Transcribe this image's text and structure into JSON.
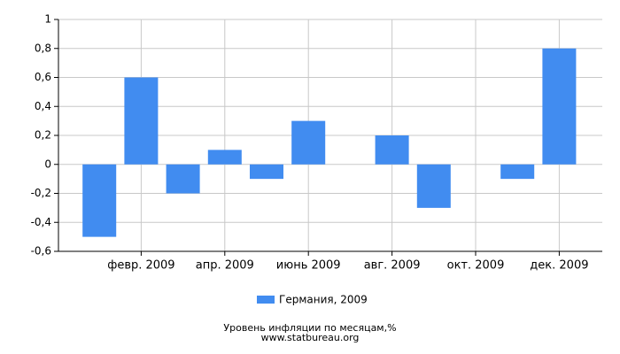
{
  "chart_data": {
    "type": "bar",
    "categories": [
      null,
      "февр. 2009",
      null,
      "апр. 2009",
      null,
      "июнь 2009",
      null,
      "авг. 2009",
      null,
      "окт. 2009",
      null,
      "дек. 2009"
    ],
    "series": [
      {
        "name": "Германия, 2009",
        "color": "#418cf0",
        "values": [
          -0.5,
          0.6,
          -0.2,
          0.1,
          -0.1,
          0.3,
          0,
          0.2,
          -0.3,
          0,
          -0.1,
          0.8
        ]
      }
    ],
    "ylim": [
      -0.6,
      1
    ],
    "yticks": [
      {
        "value": -0.6,
        "label": "-0,6"
      },
      {
        "value": -0.4,
        "label": "-0,4"
      },
      {
        "value": -0.2,
        "label": "-0,2"
      },
      0,
      {
        "value": 0.2,
        "label": "0,2"
      },
      {
        "value": 0.4,
        "label": "0,4"
      },
      {
        "value": 0.6,
        "label": "0,6"
      },
      {
        "value": 0.8,
        "label": "0,8"
      },
      1
    ],
    "grid": true,
    "legend": "bottom",
    "footer": [
      "Уровень инфляции по месяцам,%",
      "www.statbureau.org"
    ]
  }
}
